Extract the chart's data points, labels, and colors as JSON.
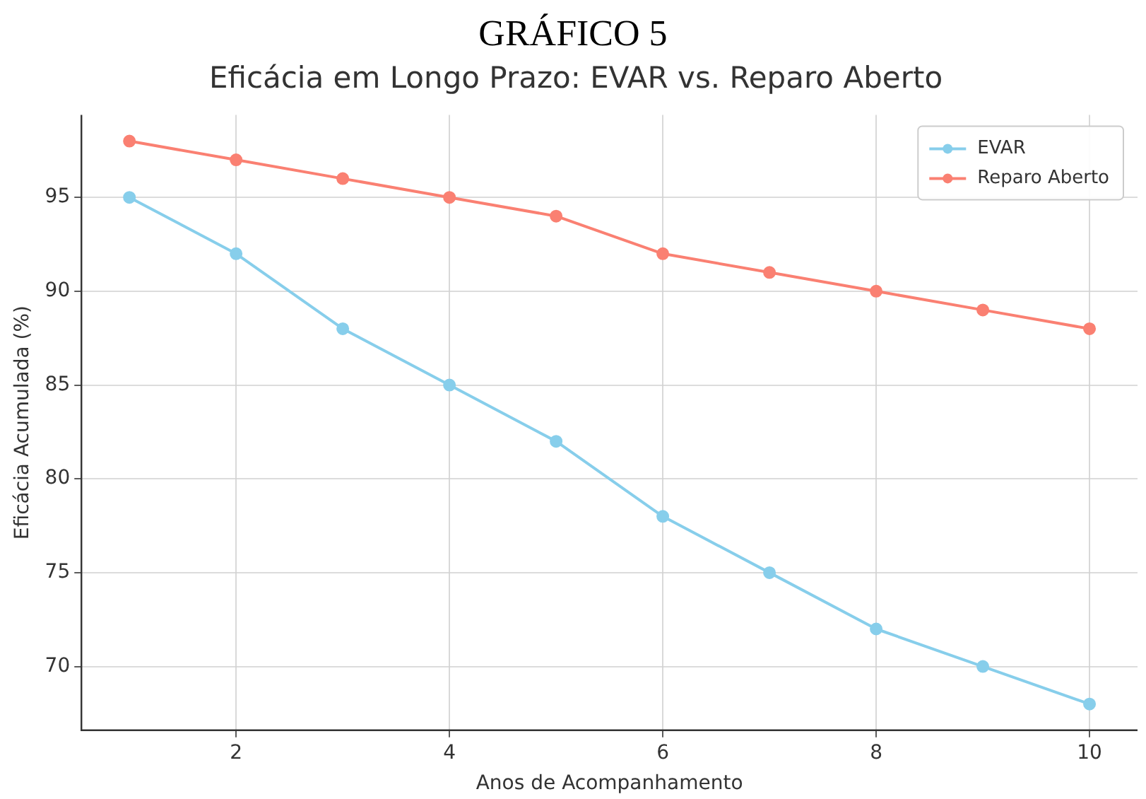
{
  "chart_data": {
    "type": "line",
    "title": "GRÁFICO 5",
    "subtitle": "Eficácia em Longo Prazo: EVAR vs. Reparo Aberto",
    "xlabel": "Anos de Acompanhamento",
    "ylabel": "Eficácia Acumulada (%)",
    "x": [
      1,
      2,
      3,
      4,
      5,
      6,
      7,
      8,
      9,
      10
    ],
    "series": [
      {
        "name": "EVAR",
        "color": "#87ceeb",
        "values": [
          95,
          92,
          88,
          85,
          82,
          78,
          75,
          72,
          70,
          68
        ]
      },
      {
        "name": "Reparo Aberto",
        "color": "#fa8072",
        "values": [
          98,
          97,
          96,
          95,
          94,
          92,
          91,
          90,
          89,
          88
        ]
      }
    ],
    "xlim": [
      0.55,
      10.45
    ],
    "xticks": [
      2,
      4,
      6,
      8,
      10
    ],
    "ylim": [
      66.6,
      99.4
    ],
    "yticks": [
      70,
      75,
      80,
      85,
      90,
      95
    ],
    "grid": true,
    "legend": "top right",
    "marker": "circle",
    "line_style": "solid"
  }
}
